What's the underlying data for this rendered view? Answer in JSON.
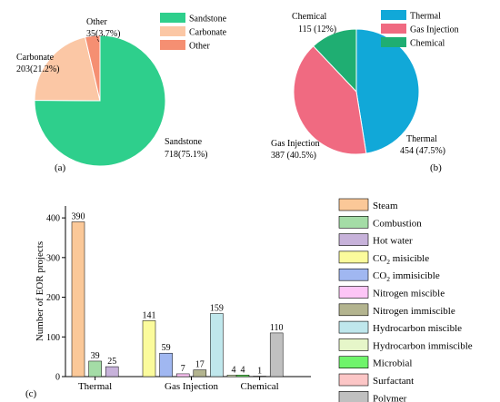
{
  "chart_data": [
    {
      "type": "pie",
      "panel_label": "(a)",
      "legend": [
        "Sandstone",
        "Carbonate",
        "Other"
      ],
      "slices": [
        {
          "name": "Sandstone",
          "value": 718,
          "percent": 75.1,
          "color": "#2ecf8c",
          "label_name": "Sandstone",
          "label_value": "718(75.1%)"
        },
        {
          "name": "Carbonate",
          "value": 203,
          "percent": 21.2,
          "color": "#fbc7a5",
          "label_name": "Carbonate",
          "label_value": "203(21.2%)"
        },
        {
          "name": "Other",
          "value": 35,
          "percent": 3.7,
          "color": "#f58f72",
          "label_name": "Other",
          "label_value": "35(3.7%)"
        }
      ]
    },
    {
      "type": "pie",
      "panel_label": "(b)",
      "legend": [
        "Thermal",
        "Gas Injection",
        "Chemical"
      ],
      "slices": [
        {
          "name": "Thermal",
          "value": 454,
          "percent": 47.5,
          "color": "#11a8d8",
          "label_name": "Thermal",
          "label_value": "454 (47.5%)"
        },
        {
          "name": "Gas Injection",
          "value": 387,
          "percent": 40.5,
          "color": "#f06a81",
          "label_name": "Gas Injection",
          "label_value": "387 (40.5%)"
        },
        {
          "name": "Chemical",
          "value": 115,
          "percent": 12,
          "color": "#1fae72",
          "label_name": "Chemical",
          "label_value": "115 (12%)"
        }
      ]
    },
    {
      "type": "bar",
      "panel_label": "(c)",
      "ylabel": "Number of EOR projects",
      "ylim": [
        0,
        430
      ],
      "yticks": [
        0,
        100,
        200,
        300,
        400
      ],
      "categories": [
        "Thermal",
        "Gas Injection",
        "Chemical"
      ],
      "series": [
        {
          "name": "Steam",
          "sub": "",
          "rest": "",
          "color": "#fbc898",
          "category": "Thermal",
          "value": 390
        },
        {
          "name": "Combustion",
          "sub": "",
          "rest": "",
          "color": "#a4dca6",
          "category": "Thermal",
          "value": 39
        },
        {
          "name": "Hot water",
          "sub": "",
          "rest": "",
          "color": "#c7b2da",
          "category": "Thermal",
          "value": 25
        },
        {
          "name": "CO",
          "sub": "2",
          "rest": " misicible",
          "color": "#fbfb9c",
          "category": "Gas Injection",
          "value": 141
        },
        {
          "name": "CO",
          "sub": "2",
          "rest": " immisicible",
          "color": "#a0b7f1",
          "category": "Gas Injection",
          "value": 59
        },
        {
          "name": "Nitrogen miscible",
          "sub": "",
          "rest": "",
          "color": "#fdc5f6",
          "category": "Gas Injection",
          "value": 7
        },
        {
          "name": "Nitrogen immiscible",
          "sub": "",
          "rest": "",
          "color": "#b3b48f",
          "category": "Gas Injection",
          "value": 17
        },
        {
          "name": "Hydrocarbon miscible",
          "sub": "",
          "rest": "",
          "color": "#bfe7ec",
          "category": "Gas Injection",
          "value": 159
        },
        {
          "name": "Hydrocarbon immiscible",
          "sub": "",
          "rest": "",
          "color": "#e6f6c9",
          "category": "Gas Injection",
          "value": 4
        },
        {
          "name": "Microbial",
          "sub": "",
          "rest": "",
          "color": "#6ff46b",
          "category": "Chemical",
          "value": 4
        },
        {
          "name": "Surfactant",
          "sub": "",
          "rest": "",
          "color": "#fcc6c6",
          "category": "Chemical",
          "value": 1
        },
        {
          "name": "Polymer",
          "sub": "",
          "rest": "",
          "color": "#c0c0c0",
          "category": "Chemical",
          "value": 110
        }
      ]
    }
  ]
}
